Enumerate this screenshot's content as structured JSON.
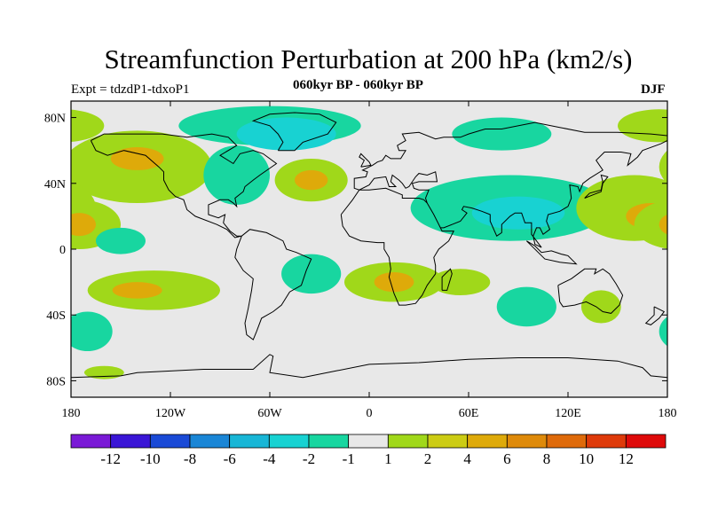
{
  "title": "Streamfunction Perturbation at 200 hPa (km2/s)",
  "experiment_label": "Expt = tdzdP1-tdxoP1",
  "period_label": "060kyr BP - 060kyr BP",
  "season_label": "DJF",
  "map": {
    "projection": "cylindrical-equidistant",
    "lon_range": [
      -180,
      180
    ],
    "lat_range": [
      -90,
      90
    ],
    "lat_ticks": [
      {
        "lat": 80,
        "label": "80N"
      },
      {
        "lat": 40,
        "label": "40N"
      },
      {
        "lat": 0,
        "label": "0"
      },
      {
        "lat": -40,
        "label": "40S"
      },
      {
        "lat": -80,
        "label": "80S"
      }
    ],
    "lon_ticks": [
      {
        "lon": -180,
        "label": "180"
      },
      {
        "lon": -120,
        "label": "120W"
      },
      {
        "lon": -60,
        "label": "60W"
      },
      {
        "lon": 0,
        "label": "0"
      },
      {
        "lon": 60,
        "label": "60E"
      },
      {
        "lon": 120,
        "label": "120E"
      },
      {
        "lon": 180,
        "label": "180"
      }
    ],
    "anomaly_regions": [
      {
        "name": "north-pacific-high",
        "lon": -140,
        "lat": 50,
        "rlon": 45,
        "rlat": 22,
        "level": 2
      },
      {
        "name": "north-pacific-high-core",
        "lon": -140,
        "lat": 55,
        "rlon": 16,
        "rlat": 7,
        "level": 4
      },
      {
        "name": "arctic-north-america-low",
        "lon": -60,
        "lat": 75,
        "rlon": 55,
        "rlat": 12,
        "level": -1
      },
      {
        "name": "greenland-low",
        "lon": -50,
        "lat": 70,
        "rlon": 30,
        "rlat": 10,
        "level": -2
      },
      {
        "name": "north-america-low",
        "lon": -80,
        "lat": 45,
        "rlon": 20,
        "rlat": 18,
        "level": -1
      },
      {
        "name": "north-atlantic-high",
        "lon": -35,
        "lat": 42,
        "rlon": 22,
        "rlat": 13,
        "level": 2
      },
      {
        "name": "north-atlantic-high-core",
        "lon": -35,
        "lat": 42,
        "rlon": 10,
        "rlat": 6,
        "level": 4
      },
      {
        "name": "siberia-low",
        "lon": 80,
        "lat": 70,
        "rlon": 30,
        "rlat": 10,
        "level": -1
      },
      {
        "name": "arctic-high-east",
        "lon": 175,
        "lat": 75,
        "rlon": 25,
        "rlat": 10,
        "level": 2
      },
      {
        "name": "asia-low",
        "lon": 85,
        "lat": 25,
        "rlon": 60,
        "rlat": 20,
        "level": -1
      },
      {
        "name": "asia-low-core",
        "lon": 90,
        "lat": 22,
        "rlon": 28,
        "rlat": 10,
        "level": -2
      },
      {
        "name": "west-pacific-high",
        "lon": 160,
        "lat": 25,
        "rlon": 35,
        "rlat": 20,
        "level": 2
      },
      {
        "name": "west-pacific-high-core",
        "lon": 170,
        "lat": 20,
        "rlon": 15,
        "rlat": 8,
        "level": 4
      },
      {
        "name": "central-pacific-high",
        "lon": -175,
        "lat": 15,
        "rlon": 25,
        "rlat": 15,
        "level": 2
      },
      {
        "name": "central-pacific-high-core",
        "lon": -175,
        "lat": 15,
        "rlon": 10,
        "rlat": 7,
        "level": 4
      },
      {
        "name": "pacific-low-east",
        "lon": -150,
        "lat": 5,
        "rlon": 15,
        "rlat": 8,
        "level": -1
      },
      {
        "name": "south-america-low",
        "lon": -35,
        "lat": -15,
        "rlon": 18,
        "rlat": 12,
        "level": -1
      },
      {
        "name": "south-atlantic-high",
        "lon": 15,
        "lat": -20,
        "rlon": 30,
        "rlat": 12,
        "level": 2
      },
      {
        "name": "south-atlantic-high-core",
        "lon": 15,
        "lat": -20,
        "rlon": 12,
        "rlat": 6,
        "level": 4
      },
      {
        "name": "indian-ocean-high",
        "lon": 55,
        "lat": -20,
        "rlon": 18,
        "rlat": 8,
        "level": 2
      },
      {
        "name": "south-indian-low",
        "lon": 95,
        "lat": -35,
        "rlon": 18,
        "rlat": 12,
        "level": -1
      },
      {
        "name": "australia-high",
        "lon": 140,
        "lat": -35,
        "rlon": 12,
        "rlat": 10,
        "level": 2
      },
      {
        "name": "south-pacific-high",
        "lon": -130,
        "lat": -25,
        "rlon": 40,
        "rlat": 12,
        "level": 2
      },
      {
        "name": "south-pacific-high-core",
        "lon": -140,
        "lat": -25,
        "rlon": 15,
        "rlat": 5,
        "level": 4
      },
      {
        "name": "southern-ocean-low",
        "lon": -170,
        "lat": -50,
        "rlon": 15,
        "rlat": 12,
        "level": -1
      },
      {
        "name": "southern-ocean-high",
        "lon": -160,
        "lat": -75,
        "rlon": 12,
        "rlat": 4,
        "level": 2
      }
    ]
  },
  "colorbar": {
    "colors": [
      "#7a1ad6",
      "#3a16d6",
      "#1a4ad6",
      "#1a86d6",
      "#18b6d6",
      "#18d2d2",
      "#18d6a0",
      "#e8e8e8",
      "#a0d81a",
      "#cccc14",
      "#deaa0a",
      "#de8a0a",
      "#de6a0a",
      "#de3a0a",
      "#de0a0a"
    ],
    "labels": [
      "-12",
      "-10",
      "-8",
      "-6",
      "-4",
      "-2",
      "-1",
      "1",
      "2",
      "4",
      "6",
      "8",
      "10",
      "12"
    ]
  },
  "level_colors": {
    "-2": "#18d2d2",
    "-1": "#18d6a0",
    "2": "#a0d81a",
    "4": "#deaa0a"
  }
}
